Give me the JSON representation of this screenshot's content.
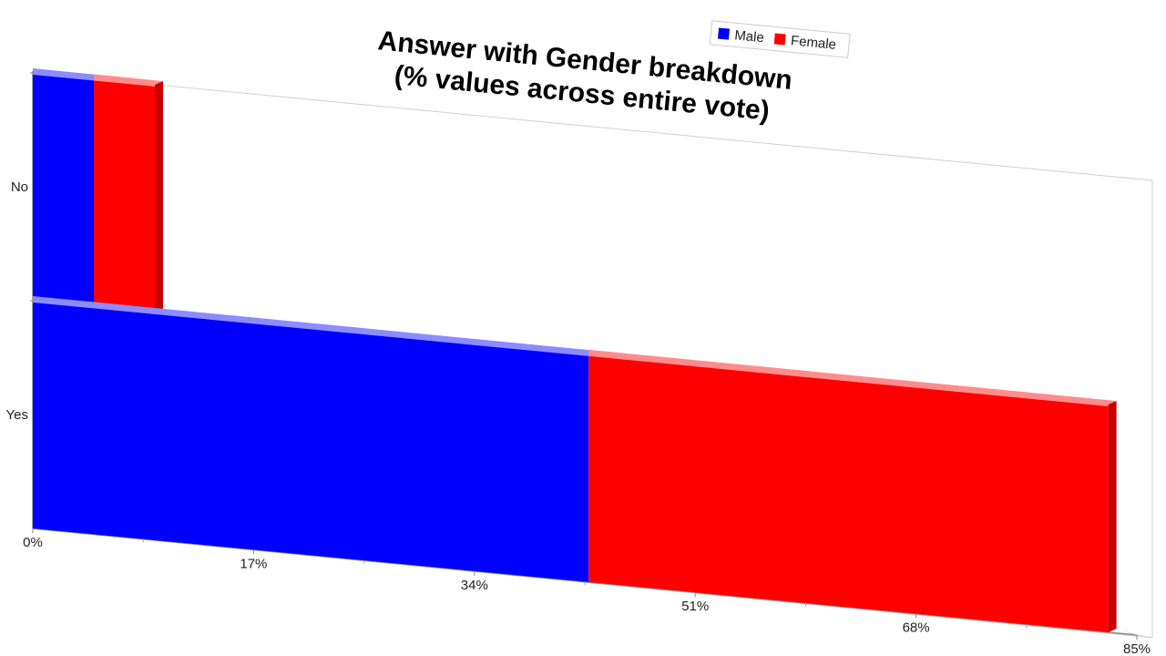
{
  "chart_data": {
    "type": "bar",
    "orientation": "horizontal",
    "stacked": true,
    "title": [
      "Answer with Gender breakdown",
      "(% values across entire vote)"
    ],
    "categories": [
      "No",
      "Yes"
    ],
    "series": [
      {
        "name": "Male",
        "color": "#0000ff",
        "values": [
          4.7,
          42.8
        ]
      },
      {
        "name": "Female",
        "color": "#ff0000",
        "values": [
          4.7,
          40.0
        ]
      }
    ],
    "x_ticks": [
      "0%",
      "17%",
      "34%",
      "51%",
      "68%",
      "85%"
    ],
    "xlim": [
      0,
      85
    ],
    "legend_position": "top-right",
    "grid": false
  }
}
